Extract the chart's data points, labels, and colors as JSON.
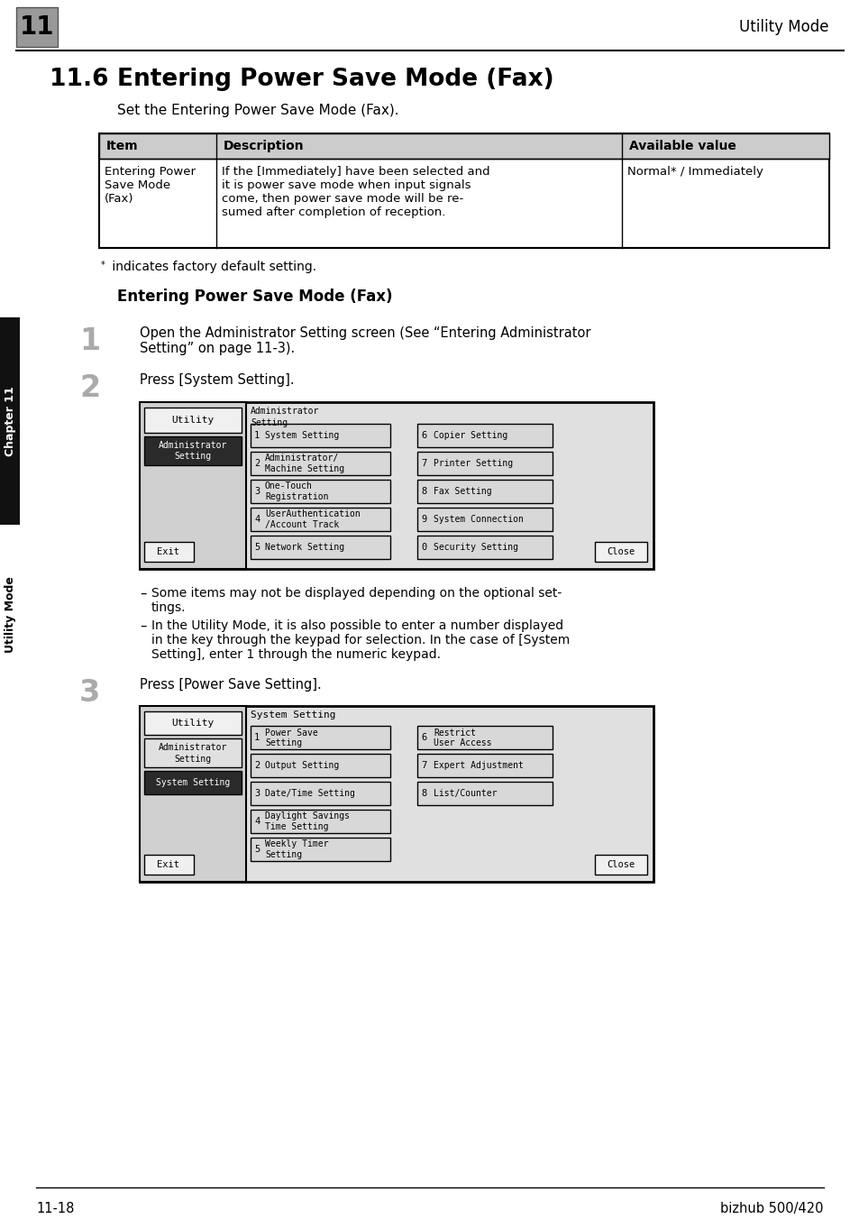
{
  "page_bg": "#ffffff",
  "title_number": "11.6",
  "title_text": "Entering Power Save Mode (Fax)",
  "subtitle": "Set the Entering Power Save Mode (Fax).",
  "table_headers": [
    "Item",
    "Description",
    "Available value"
  ],
  "table_col1_lines": [
    "Entering Power",
    "Save Mode",
    "(Fax)"
  ],
  "table_col2_lines": [
    "If the [Immediately] have been selected and",
    "it is power save mode when input signals",
    "come, then power save mode will be re-",
    "sumed after completion of reception."
  ],
  "table_col3": "Normal* / Immediately",
  "footnote_star": "*",
  "footnote_text": " indicates factory default setting.",
  "section_title": "Entering Power Save Mode (Fax)",
  "step1_num": "1",
  "step1_lines": [
    "Open the Administrator Setting screen (See “Entering Administrator",
    "Setting” on page 11-3)."
  ],
  "step2_num": "2",
  "step2_text": "Press [System Setting].",
  "step3_num": "3",
  "step3_text": "Press [Power Save Setting].",
  "bullet1_lines": [
    "Some items may not be displayed depending on the optional set-",
    "tings."
  ],
  "bullet2_lines": [
    "In the Utility Mode, it is also possible to enter a number displayed",
    "in the key through the keypad for selection. In the case of [System",
    "Setting], enter 1 through the numeric keypad."
  ],
  "footer_left": "11-18",
  "footer_right": "bizhub 500/420",
  "header_right": "Utility Mode",
  "screen1_title_lines": [
    "Administrator",
    "Setting"
  ],
  "screen1_items": [
    [
      "1",
      "System Setting",
      "6",
      "Copier Setting"
    ],
    [
      "2",
      "Administrator/\nMachine Setting",
      "7",
      "Printer Setting"
    ],
    [
      "3",
      "One-Touch\nRegistration",
      "8",
      "Fax Setting"
    ],
    [
      "4",
      "UserAuthentication\n/Account Track",
      "9",
      "System Connection"
    ],
    [
      "5",
      "Network Setting",
      "0",
      "Security Setting"
    ]
  ],
  "screen2_title": "System Setting",
  "screen2_items": [
    [
      "1",
      "Power Save\nSetting",
      "6",
      "Restrict\nUser Access"
    ],
    [
      "2",
      "Output Setting",
      "7",
      "Expert Adjustment"
    ],
    [
      "3",
      "Date/Time Setting",
      "8",
      "List/Counter"
    ],
    [
      "4",
      "Daylight Savings\nTime Setting",
      "",
      ""
    ],
    [
      "5",
      "Weekly Timer\nSetting",
      "",
      ""
    ]
  ]
}
